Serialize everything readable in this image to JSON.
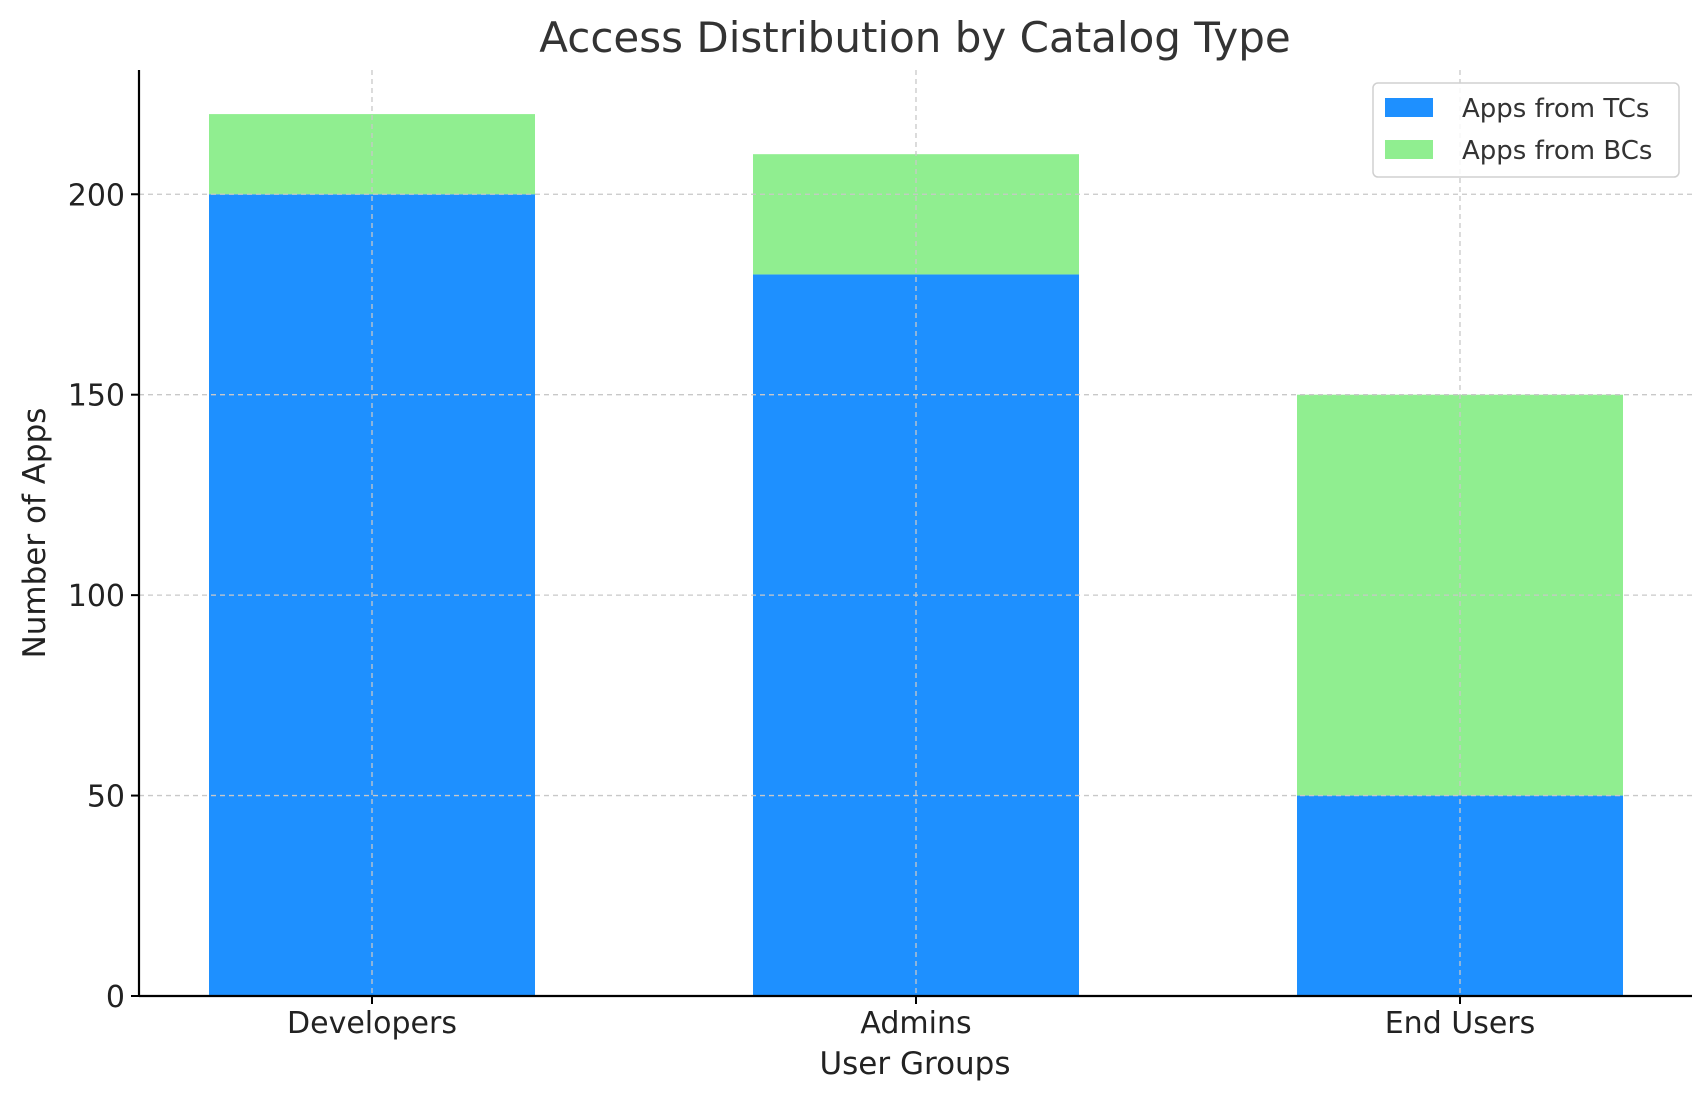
{
  "chart_data": {
    "type": "bar",
    "stacked": true,
    "title": "Access Distribution by Catalog Type",
    "xlabel": "User Groups",
    "ylabel": "Number of Apps",
    "categories": [
      "Developers",
      "Admins",
      "End Users"
    ],
    "series": [
      {
        "name": "Apps from TCs",
        "values": [
          200,
          180,
          50
        ],
        "color": "#1e90ff"
      },
      {
        "name": "Apps from BCs",
        "values": [
          20,
          30,
          100
        ],
        "color": "#90ee90"
      }
    ],
    "ylim": [
      0,
      231
    ],
    "yticks": [
      0,
      50,
      100,
      150,
      200
    ],
    "grid": true,
    "legend_position": "top-right"
  }
}
